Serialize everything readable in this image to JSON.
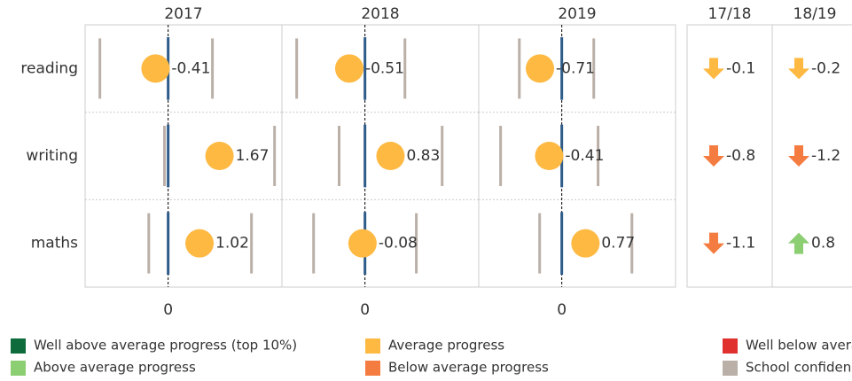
{
  "chart_data": {
    "type": "dot-panels",
    "categories": [
      "reading",
      "writing",
      "maths"
    ],
    "xlim": [
      -2.7,
      3.7
    ],
    "xticks": [
      0
    ],
    "dot_color": "#fdb942",
    "ci_color": "#bab0a8",
    "zero_color": "#2e5c8a",
    "panels": [
      {
        "title": "2017",
        "values": [
          -0.41,
          1.67,
          1.02
        ],
        "ci_low": [
          -2.22,
          -0.12,
          -0.63
        ],
        "ci_high": [
          1.44,
          3.46,
          2.71
        ]
      },
      {
        "title": "2018",
        "values": [
          -0.51,
          0.83,
          -0.08
        ],
        "ci_low": [
          -2.22,
          -0.84,
          -1.67
        ],
        "ci_high": [
          1.3,
          2.51,
          1.67
        ]
      },
      {
        "title": "2019",
        "values": [
          -0.71,
          -0.41,
          0.77
        ],
        "ci_low": [
          -1.38,
          -1.99,
          -0.72
        ],
        "ci_high": [
          1.04,
          1.18,
          2.28
        ]
      }
    ],
    "changes": [
      {
        "name": "17/18",
        "values": [
          -0.1,
          -0.8,
          -1.1
        ],
        "colors": [
          "#fdb942",
          "#f47c40",
          "#f47c40"
        ]
      },
      {
        "name": "18/19",
        "values": [
          -0.2,
          -1.2,
          0.8
        ],
        "colors": [
          "#fdb942",
          "#f47c40",
          "#8cce72"
        ]
      }
    ],
    "legend": [
      {
        "label": "Well above average progress (top 10%)",
        "color": "#0e6b3b"
      },
      {
        "label": "Above average progress",
        "color": "#8cce72"
      },
      {
        "label": "Average progress",
        "color": "#fdb942"
      },
      {
        "label": "Below average progress",
        "color": "#f47c40"
      },
      {
        "label": "Well below average progress",
        "color": "#e0312f"
      },
      {
        "label": "School confidence interval",
        "color": "#bab0a8"
      }
    ]
  }
}
